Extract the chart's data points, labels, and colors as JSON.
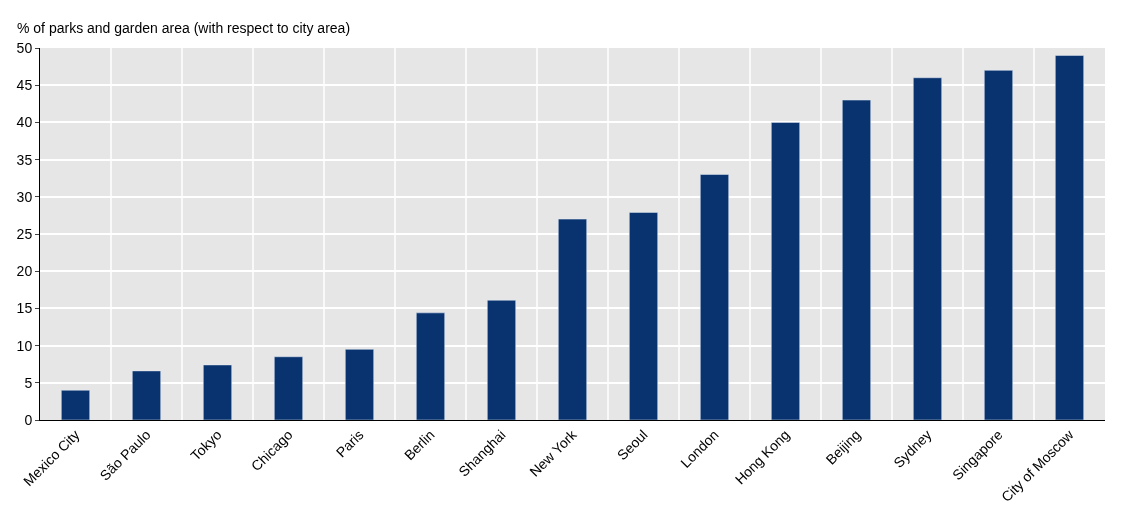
{
  "chart_data": {
    "type": "bar",
    "ylabel": "% of parks and garden area (with respect to city area)",
    "categories": [
      "Mexico City",
      "São Paulo",
      "Tokyo",
      "Chicago",
      "Paris",
      "Berlin",
      "Shanghai",
      "New York",
      "Seoul",
      "London",
      "Hong Kong",
      "Beijing",
      "Sydney",
      "Singapore",
      "City of Moscow"
    ],
    "values": [
      4,
      6.6,
      7.4,
      8.5,
      9.5,
      14.4,
      16.1,
      27,
      27.9,
      33,
      40,
      43,
      46,
      47,
      49
    ],
    "color": "#08336e",
    "ylim": [
      0,
      50
    ],
    "yticks": [
      0,
      5,
      10,
      15,
      20,
      25,
      30,
      35,
      40,
      45,
      50
    ],
    "grid": true
  }
}
